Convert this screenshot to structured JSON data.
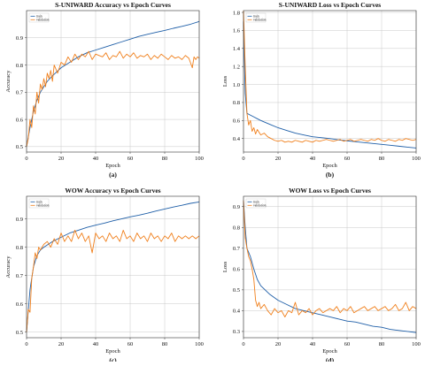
{
  "chart_data": [
    {
      "type": "line",
      "title": "S-UNIWARD Accuracy vs Epoch Curves",
      "caption": "(a)",
      "xlabel": "Epoch",
      "ylabel": "Accuracy",
      "xlim": [
        0,
        100
      ],
      "ylim": [
        0.48,
        1.0
      ],
      "xticks": [
        0,
        20,
        40,
        60,
        80,
        100
      ],
      "yticks": [
        0.5,
        0.6,
        0.7,
        0.8,
        0.9
      ],
      "grid": true,
      "legend": "top-left",
      "series": [
        {
          "name": "train",
          "color": "#1f5fa8",
          "x": [
            0,
            2,
            4,
            6,
            8,
            10,
            12,
            15,
            20,
            25,
            30,
            35,
            40,
            45,
            50,
            55,
            60,
            65,
            70,
            75,
            80,
            85,
            90,
            95,
            100
          ],
          "values": [
            0.5,
            0.57,
            0.63,
            0.67,
            0.7,
            0.72,
            0.74,
            0.76,
            0.79,
            0.81,
            0.83,
            0.845,
            0.855,
            0.865,
            0.875,
            0.885,
            0.895,
            0.905,
            0.913,
            0.92,
            0.927,
            0.935,
            0.942,
            0.95,
            0.96
          ]
        },
        {
          "name": "validation",
          "color": "#f07f1b",
          "x": [
            0,
            1,
            2,
            3,
            4,
            5,
            6,
            7,
            8,
            9,
            10,
            11,
            12,
            13,
            14,
            15,
            16,
            18,
            20,
            22,
            24,
            26,
            28,
            30,
            32,
            34,
            36,
            38,
            40,
            42,
            44,
            46,
            48,
            50,
            52,
            54,
            56,
            58,
            60,
            62,
            64,
            66,
            68,
            70,
            72,
            74,
            76,
            78,
            80,
            82,
            84,
            86,
            88,
            90,
            92,
            94,
            96,
            97,
            98,
            99,
            100
          ],
          "values": [
            0.5,
            0.53,
            0.6,
            0.57,
            0.65,
            0.62,
            0.7,
            0.66,
            0.73,
            0.71,
            0.75,
            0.72,
            0.77,
            0.75,
            0.78,
            0.74,
            0.8,
            0.77,
            0.81,
            0.8,
            0.83,
            0.81,
            0.84,
            0.82,
            0.84,
            0.83,
            0.85,
            0.82,
            0.84,
            0.835,
            0.83,
            0.845,
            0.82,
            0.835,
            0.83,
            0.85,
            0.825,
            0.84,
            0.83,
            0.845,
            0.825,
            0.835,
            0.83,
            0.84,
            0.82,
            0.835,
            0.825,
            0.84,
            0.83,
            0.82,
            0.835,
            0.825,
            0.83,
            0.82,
            0.835,
            0.825,
            0.79,
            0.83,
            0.82,
            0.83,
            0.825
          ]
        }
      ]
    },
    {
      "type": "line",
      "title": "S-UNIWARD Loss vs Epoch Curves",
      "caption": "(b)",
      "xlabel": "Epoch",
      "ylabel": "Loss",
      "xlim": [
        0,
        100
      ],
      "ylim": [
        0.25,
        1.82
      ],
      "xticks": [
        0,
        20,
        40,
        60,
        80,
        100
      ],
      "yticks": [
        0.4,
        0.6,
        0.8,
        1.0,
        1.2,
        1.4,
        1.6,
        1.8
      ],
      "grid": true,
      "legend": "top-left",
      "series": [
        {
          "name": "train",
          "color": "#1f5fa8",
          "x": [
            0,
            1,
            2,
            4,
            6,
            8,
            10,
            15,
            20,
            25,
            30,
            35,
            40,
            45,
            50,
            55,
            60,
            65,
            70,
            75,
            80,
            85,
            90,
            95,
            100
          ],
          "values": [
            1.7,
            0.9,
            0.68,
            0.66,
            0.64,
            0.62,
            0.6,
            0.56,
            0.52,
            0.49,
            0.46,
            0.44,
            0.42,
            0.41,
            0.4,
            0.385,
            0.375,
            0.365,
            0.355,
            0.345,
            0.335,
            0.325,
            0.315,
            0.305,
            0.295
          ]
        },
        {
          "name": "validation",
          "color": "#f07f1b",
          "x": [
            0,
            1,
            2,
            3,
            4,
            5,
            6,
            7,
            8,
            9,
            10,
            12,
            14,
            16,
            18,
            20,
            22,
            24,
            26,
            28,
            30,
            32,
            34,
            36,
            38,
            40,
            42,
            44,
            46,
            48,
            50,
            52,
            54,
            56,
            58,
            60,
            62,
            64,
            66,
            68,
            70,
            72,
            74,
            76,
            78,
            80,
            82,
            84,
            86,
            88,
            90,
            92,
            94,
            96,
            98,
            100
          ],
          "values": [
            1.82,
            1.2,
            0.68,
            0.55,
            0.6,
            0.48,
            0.52,
            0.45,
            0.5,
            0.47,
            0.44,
            0.46,
            0.42,
            0.4,
            0.38,
            0.37,
            0.38,
            0.36,
            0.37,
            0.36,
            0.38,
            0.37,
            0.36,
            0.38,
            0.37,
            0.36,
            0.38,
            0.37,
            0.38,
            0.39,
            0.38,
            0.37,
            0.38,
            0.39,
            0.37,
            0.38,
            0.39,
            0.37,
            0.38,
            0.39,
            0.38,
            0.37,
            0.39,
            0.38,
            0.4,
            0.38,
            0.37,
            0.39,
            0.38,
            0.37,
            0.39,
            0.38,
            0.4,
            0.39,
            0.38,
            0.39
          ]
        }
      ]
    },
    {
      "type": "line",
      "title": "WOW Accuracy vs Epoch Curves",
      "caption": "(c)",
      "xlabel": "Epoch",
      "ylabel": "Accuracy",
      "xlim": [
        0,
        100
      ],
      "ylim": [
        0.48,
        0.98
      ],
      "xticks": [
        0,
        20,
        40,
        60,
        80,
        100
      ],
      "yticks": [
        0.5,
        0.6,
        0.7,
        0.8,
        0.9
      ],
      "grid": true,
      "legend": "top-left",
      "series": [
        {
          "name": "train",
          "color": "#1f5fa8",
          "x": [
            0,
            2,
            4,
            6,
            8,
            10,
            15,
            20,
            25,
            30,
            35,
            40,
            45,
            50,
            55,
            60,
            65,
            70,
            75,
            80,
            85,
            90,
            95,
            100
          ],
          "values": [
            0.5,
            0.65,
            0.73,
            0.77,
            0.79,
            0.8,
            0.82,
            0.835,
            0.85,
            0.86,
            0.87,
            0.878,
            0.885,
            0.893,
            0.9,
            0.907,
            0.913,
            0.92,
            0.928,
            0.935,
            0.942,
            0.948,
            0.955,
            0.96
          ]
        },
        {
          "name": "validation",
          "color": "#f07f1b",
          "x": [
            0,
            1,
            2,
            3,
            4,
            5,
            6,
            7,
            8,
            10,
            12,
            14,
            16,
            18,
            20,
            22,
            24,
            26,
            28,
            30,
            32,
            34,
            36,
            38,
            40,
            42,
            44,
            46,
            48,
            50,
            52,
            54,
            56,
            58,
            60,
            62,
            64,
            66,
            68,
            70,
            72,
            74,
            76,
            78,
            80,
            82,
            84,
            86,
            88,
            90,
            92,
            94,
            96,
            98,
            100
          ],
          "values": [
            0.5,
            0.58,
            0.57,
            0.69,
            0.73,
            0.78,
            0.76,
            0.8,
            0.79,
            0.81,
            0.82,
            0.8,
            0.83,
            0.81,
            0.85,
            0.82,
            0.84,
            0.82,
            0.86,
            0.83,
            0.85,
            0.82,
            0.84,
            0.78,
            0.85,
            0.83,
            0.84,
            0.82,
            0.85,
            0.83,
            0.84,
            0.82,
            0.86,
            0.83,
            0.84,
            0.82,
            0.85,
            0.83,
            0.84,
            0.82,
            0.85,
            0.83,
            0.84,
            0.82,
            0.84,
            0.83,
            0.85,
            0.82,
            0.84,
            0.83,
            0.84,
            0.83,
            0.84,
            0.83,
            0.84
          ]
        }
      ]
    },
    {
      "type": "line",
      "title": "WOW Loss vs Epoch Curves",
      "caption": "(d)",
      "xlabel": "Epoch",
      "ylabel": "Loss",
      "xlim": [
        0,
        100
      ],
      "ylim": [
        0.27,
        0.95
      ],
      "xticks": [
        0,
        20,
        40,
        60,
        80,
        100
      ],
      "yticks": [
        0.3,
        0.4,
        0.5,
        0.6,
        0.7,
        0.8,
        0.9
      ],
      "grid": true,
      "legend": "top-left",
      "series": [
        {
          "name": "train",
          "color": "#1f5fa8",
          "x": [
            0,
            1,
            2,
            4,
            6,
            8,
            10,
            15,
            20,
            25,
            30,
            35,
            40,
            45,
            50,
            55,
            60,
            65,
            70,
            75,
            80,
            85,
            90,
            95,
            100
          ],
          "values": [
            0.93,
            0.8,
            0.7,
            0.66,
            0.6,
            0.55,
            0.52,
            0.48,
            0.45,
            0.43,
            0.41,
            0.4,
            0.39,
            0.38,
            0.37,
            0.36,
            0.35,
            0.345,
            0.335,
            0.325,
            0.32,
            0.31,
            0.305,
            0.3,
            0.295
          ]
        },
        {
          "name": "validation",
          "color": "#f07f1b",
          "x": [
            0,
            1,
            2,
            3,
            4,
            5,
            6,
            7,
            8,
            9,
            10,
            12,
            14,
            16,
            18,
            20,
            22,
            24,
            26,
            28,
            30,
            32,
            34,
            36,
            38,
            40,
            42,
            44,
            46,
            48,
            50,
            52,
            54,
            56,
            58,
            60,
            62,
            64,
            66,
            68,
            70,
            72,
            74,
            76,
            78,
            80,
            82,
            84,
            86,
            88,
            90,
            92,
            94,
            96,
            98,
            100
          ],
          "values": [
            0.93,
            0.75,
            0.7,
            0.66,
            0.64,
            0.6,
            0.55,
            0.45,
            0.42,
            0.44,
            0.41,
            0.43,
            0.4,
            0.38,
            0.41,
            0.39,
            0.4,
            0.37,
            0.4,
            0.39,
            0.44,
            0.38,
            0.4,
            0.39,
            0.41,
            0.38,
            0.4,
            0.41,
            0.39,
            0.4,
            0.41,
            0.4,
            0.42,
            0.39,
            0.41,
            0.4,
            0.42,
            0.39,
            0.4,
            0.41,
            0.42,
            0.4,
            0.41,
            0.42,
            0.4,
            0.41,
            0.42,
            0.4,
            0.41,
            0.43,
            0.4,
            0.41,
            0.44,
            0.4,
            0.42,
            0.41
          ]
        }
      ]
    }
  ]
}
